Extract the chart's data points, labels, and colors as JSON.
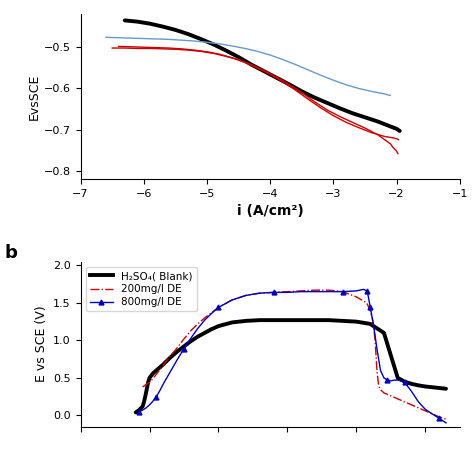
{
  "panel_a": {
    "xlabel": "i (A/cm²)",
    "ylabel": "EvsSCE",
    "xlim": [
      -7,
      -1
    ],
    "ylim": [
      -0.82,
      -0.42
    ],
    "xticks": [
      -7,
      -6,
      -5,
      -4,
      -3,
      -2,
      -1
    ],
    "yticks": [
      -0.8,
      -0.7,
      -0.6,
      -0.5
    ],
    "black_curve": {
      "color": "#000000",
      "lw": 2.8,
      "x": [
        -6.3,
        -6.1,
        -5.9,
        -5.7,
        -5.5,
        -5.3,
        -5.1,
        -4.9,
        -4.7,
        -4.5,
        -4.3,
        -4.1,
        -3.9,
        -3.7,
        -3.5,
        -3.3,
        -3.1,
        -2.9,
        -2.7,
        -2.5,
        -2.3,
        -2.1,
        -2.0,
        -1.95
      ],
      "y": [
        -0.435,
        -0.438,
        -0.443,
        -0.45,
        -0.458,
        -0.468,
        -0.48,
        -0.493,
        -0.508,
        -0.524,
        -0.542,
        -0.558,
        -0.574,
        -0.59,
        -0.607,
        -0.622,
        -0.635,
        -0.648,
        -0.66,
        -0.67,
        -0.68,
        -0.692,
        -0.698,
        -0.703
      ]
    },
    "red_curve1": {
      "color": "#cc0000",
      "lw": 1.0,
      "linestyle": "-",
      "x": [
        -6.5,
        -6.3,
        -6.1,
        -5.9,
        -5.7,
        -5.5,
        -5.3,
        -5.1,
        -4.9,
        -4.7,
        -4.5,
        -4.3,
        -4.1,
        -3.9,
        -3.7,
        -3.5,
        -3.3,
        -3.1,
        -2.9,
        -2.7,
        -2.5,
        -2.3,
        -2.1,
        -2.05,
        -2.0,
        -1.98
      ],
      "y": [
        -0.502,
        -0.502,
        -0.503,
        -0.503,
        -0.504,
        -0.505,
        -0.507,
        -0.51,
        -0.515,
        -0.522,
        -0.53,
        -0.542,
        -0.556,
        -0.572,
        -0.59,
        -0.61,
        -0.632,
        -0.652,
        -0.668,
        -0.682,
        -0.696,
        -0.712,
        -0.734,
        -0.744,
        -0.752,
        -0.758
      ]
    },
    "red_curve2": {
      "color": "#cc0000",
      "lw": 1.0,
      "linestyle": "-",
      "x": [
        -6.4,
        -6.2,
        -6.0,
        -5.8,
        -5.6,
        -5.4,
        -5.2,
        -5.0,
        -4.8,
        -4.6,
        -4.4,
        -4.2,
        -4.0,
        -3.8,
        -3.6,
        -3.4,
        -3.2,
        -3.0,
        -2.8,
        -2.6,
        -2.4,
        -2.2,
        -2.05,
        -2.0,
        -1.97
      ],
      "y": [
        -0.498,
        -0.499,
        -0.5,
        -0.501,
        -0.502,
        -0.504,
        -0.507,
        -0.511,
        -0.517,
        -0.526,
        -0.537,
        -0.551,
        -0.566,
        -0.584,
        -0.604,
        -0.626,
        -0.647,
        -0.666,
        -0.682,
        -0.695,
        -0.707,
        -0.716,
        -0.72,
        -0.722,
        -0.724
      ]
    },
    "blue_curve": {
      "color": "#6699cc",
      "lw": 1.0,
      "linestyle": "-",
      "x": [
        -6.6,
        -6.4,
        -6.2,
        -6.0,
        -5.8,
        -5.6,
        -5.4,
        -5.2,
        -5.0,
        -4.8,
        -4.6,
        -4.4,
        -4.2,
        -4.0,
        -3.8,
        -3.6,
        -3.4,
        -3.2,
        -3.0,
        -2.8,
        -2.6,
        -2.4,
        -2.2,
        -2.1
      ],
      "y": [
        -0.476,
        -0.477,
        -0.478,
        -0.479,
        -0.48,
        -0.481,
        -0.483,
        -0.485,
        -0.488,
        -0.492,
        -0.497,
        -0.503,
        -0.51,
        -0.519,
        -0.53,
        -0.542,
        -0.555,
        -0.568,
        -0.58,
        -0.591,
        -0.6,
        -0.607,
        -0.613,
        -0.617
      ]
    }
  },
  "panel_b": {
    "ylabel": "E vs SCE (V)",
    "xlim": [
      0.0,
      0.0055
    ],
    "ylim": [
      -0.15,
      2.05
    ],
    "yticks": [
      0.0,
      0.5,
      1.0,
      1.5,
      2.0
    ],
    "black_curve": {
      "color": "#000000",
      "lw": 2.8,
      "forward_x": [
        0.0008,
        0.00085,
        0.0009,
        0.00092,
        0.00094,
        0.00096,
        0.00098,
        0.001,
        0.00105,
        0.0011,
        0.0012,
        0.0013,
        0.0014,
        0.0015,
        0.0016,
        0.0017,
        0.0018,
        0.0019,
        0.002,
        0.0022,
        0.0024,
        0.0026,
        0.0028,
        0.003,
        0.0032,
        0.0034,
        0.0036,
        0.0038,
        0.004,
        0.0042,
        0.0044,
        0.00455,
        0.0046
      ],
      "forward_y": [
        0.04,
        0.07,
        0.12,
        0.18,
        0.26,
        0.35,
        0.44,
        0.5,
        0.56,
        0.6,
        0.68,
        0.77,
        0.85,
        0.92,
        0.99,
        1.05,
        1.1,
        1.15,
        1.19,
        1.24,
        1.26,
        1.27,
        1.27,
        1.27,
        1.27,
        1.27,
        1.27,
        1.26,
        1.25,
        1.22,
        1.1,
        0.65,
        0.5
      ],
      "backward_x": [
        0.0046,
        0.0047,
        0.0048,
        0.0049,
        0.005,
        0.0051,
        0.0052,
        0.0053
      ],
      "backward_y": [
        0.5,
        0.45,
        0.42,
        0.4,
        0.385,
        0.375,
        0.365,
        0.355
      ]
    },
    "red_curve": {
      "color": "#cc0000",
      "lw": 1.0,
      "linestyle": "-.",
      "forward_x": [
        0.0009,
        0.00095,
        0.001,
        0.00105,
        0.0011,
        0.00115,
        0.0012,
        0.0013,
        0.0014,
        0.0015,
        0.0016,
        0.0017,
        0.0018,
        0.0019,
        0.002,
        0.0021,
        0.0022,
        0.0024,
        0.0026,
        0.0028,
        0.003,
        0.0032,
        0.0034,
        0.0036,
        0.0038,
        0.004,
        0.00415,
        0.0042,
        0.00423,
        0.00425,
        0.00427,
        0.00428,
        0.00429,
        0.0043,
        0.00432,
        0.00434
      ],
      "forward_y": [
        0.38,
        0.41,
        0.44,
        0.49,
        0.55,
        0.61,
        0.67,
        0.79,
        0.9,
        1.02,
        1.13,
        1.22,
        1.3,
        1.37,
        1.44,
        1.49,
        1.54,
        1.6,
        1.63,
        1.64,
        1.65,
        1.66,
        1.67,
        1.67,
        1.65,
        1.58,
        1.5,
        1.4,
        1.3,
        1.18,
        1.02,
        0.88,
        0.72,
        0.58,
        0.42,
        0.35
      ],
      "backward_x": [
        0.00434,
        0.0044,
        0.0045,
        0.0046,
        0.0047,
        0.0048,
        0.0049,
        0.005,
        0.0051,
        0.0052,
        0.0053
      ],
      "backward_y": [
        0.35,
        0.3,
        0.26,
        0.22,
        0.18,
        0.14,
        0.1,
        0.06,
        0.02,
        -0.02,
        -0.05
      ]
    },
    "blue_curve": {
      "color": "#0000bb",
      "lw": 1.0,
      "linestyle": "-",
      "forward_x": [
        0.00085,
        0.0009,
        0.00095,
        0.001,
        0.00105,
        0.0011,
        0.00115,
        0.0012,
        0.0013,
        0.0014,
        0.0015,
        0.0016,
        0.0017,
        0.0018,
        0.0019,
        0.002,
        0.0021,
        0.0022,
        0.0024,
        0.0026,
        0.0028,
        0.003,
        0.0032,
        0.0034,
        0.0036,
        0.0038,
        0.004,
        0.00405,
        0.0041,
        0.00413,
        0.00415,
        0.00416,
        0.00417,
        0.00418
      ],
      "forward_y": [
        0.05,
        0.07,
        0.1,
        0.14,
        0.19,
        0.25,
        0.33,
        0.42,
        0.58,
        0.74,
        0.89,
        1.03,
        1.16,
        1.27,
        1.36,
        1.44,
        1.49,
        1.54,
        1.6,
        1.63,
        1.64,
        1.64,
        1.65,
        1.65,
        1.65,
        1.65,
        1.66,
        1.67,
        1.68,
        1.67,
        1.66,
        1.64,
        1.6,
        1.55
      ],
      "backward_x": [
        0.00418,
        0.0042,
        0.00425,
        0.0043,
        0.00435,
        0.0044,
        0.00445,
        0.0045,
        0.00455,
        0.0046,
        0.00465,
        0.0047,
        0.0048,
        0.0049,
        0.005,
        0.0051,
        0.0052,
        0.0053
      ],
      "backward_y": [
        1.55,
        1.45,
        1.2,
        0.88,
        0.6,
        0.5,
        0.47,
        0.46,
        0.47,
        0.47,
        0.46,
        0.44,
        0.32,
        0.18,
        0.08,
        0.02,
        -0.04,
        -0.1
      ]
    },
    "legend": {
      "entries": [
        "H₂SO₄( Blank)",
        "200mg/l DE",
        "800mg/l DE"
      ],
      "colors": [
        "#000000",
        "#cc0000",
        "#0000bb"
      ],
      "linestyles": [
        "-",
        "-.",
        "-"
      ],
      "linewidths": [
        2.8,
        1.0,
        1.0
      ],
      "markers": [
        null,
        null,
        "^"
      ]
    }
  },
  "figure_bg": "#ffffff"
}
